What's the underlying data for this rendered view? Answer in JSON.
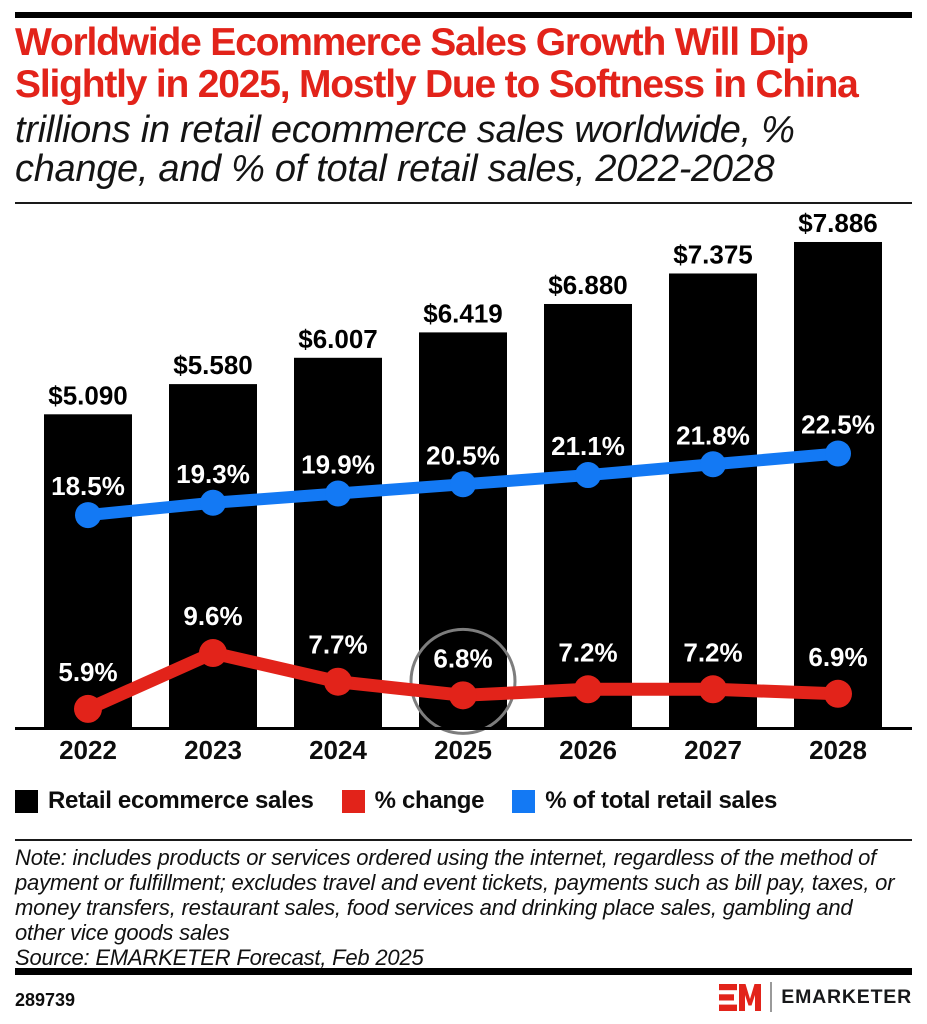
{
  "header": {
    "title": "Worldwide Ecommerce Sales Growth Will Dip\nSlightly in 2025, Mostly Due to Softness in China",
    "subtitle": "trillions in retail ecommerce sales worldwide, %\nchange, and % of total retail sales, 2022-2028"
  },
  "colors": {
    "title_red": "#e2231a",
    "bar_black": "#000000",
    "line_red": "#e2231a",
    "line_blue": "#1379f4",
    "annotation_gray": "#7d7d7d"
  },
  "chart_data": {
    "type": "bar+line combo",
    "categories": [
      "2022",
      "2023",
      "2024",
      "2025",
      "2026",
      "2027",
      "2028"
    ],
    "series": [
      {
        "name": "Retail ecommerce sales",
        "type": "bar",
        "color": "#000000",
        "values": [
          5.09,
          5.58,
          6.007,
          6.419,
          6.88,
          7.375,
          7.886
        ],
        "labels": [
          "$5.090",
          "$5.580",
          "$6.007",
          "$6.419",
          "$6.880",
          "$7.375",
          "$7.886"
        ]
      },
      {
        "name": "% change",
        "type": "line",
        "color": "#e2231a",
        "values": [
          5.9,
          9.6,
          7.7,
          6.8,
          7.2,
          7.2,
          6.9
        ],
        "labels": [
          "5.9%",
          "9.6%",
          "7.7%",
          "6.8%",
          "7.2%",
          "7.2%",
          "6.9%"
        ]
      },
      {
        "name": "% of total retail sales",
        "type": "line",
        "color": "#1379f4",
        "values": [
          18.5,
          19.3,
          19.9,
          20.5,
          21.1,
          21.8,
          22.5
        ],
        "labels": [
          "18.5%",
          "19.3%",
          "19.9%",
          "20.5%",
          "21.1%",
          "21.8%",
          "22.5%"
        ]
      }
    ],
    "annotation": {
      "type": "circle-highlight",
      "series": "% change",
      "category": "2025",
      "color": "#7d7d7d"
    },
    "units": "trillions of US dollars",
    "grid": "off"
  },
  "legend": [
    {
      "label": "Retail ecommerce sales",
      "color": "#000000"
    },
    {
      "label": "% change",
      "color": "#e2231a"
    },
    {
      "label": "% of total retail sales",
      "color": "#1379f4"
    }
  ],
  "note": "Note: includes products or services ordered using the internet, regardless of the method of\npayment or fulfillment; excludes travel and event tickets, payments such as bill pay, taxes, or\nmoney transfers, restaurant sales, food services and drinking place sales, gambling and\nother vice goods sales",
  "source": "Source: EMARKETER Forecast, Feb 2025",
  "footer": {
    "id": "289739",
    "brand": "EMARKETER"
  }
}
